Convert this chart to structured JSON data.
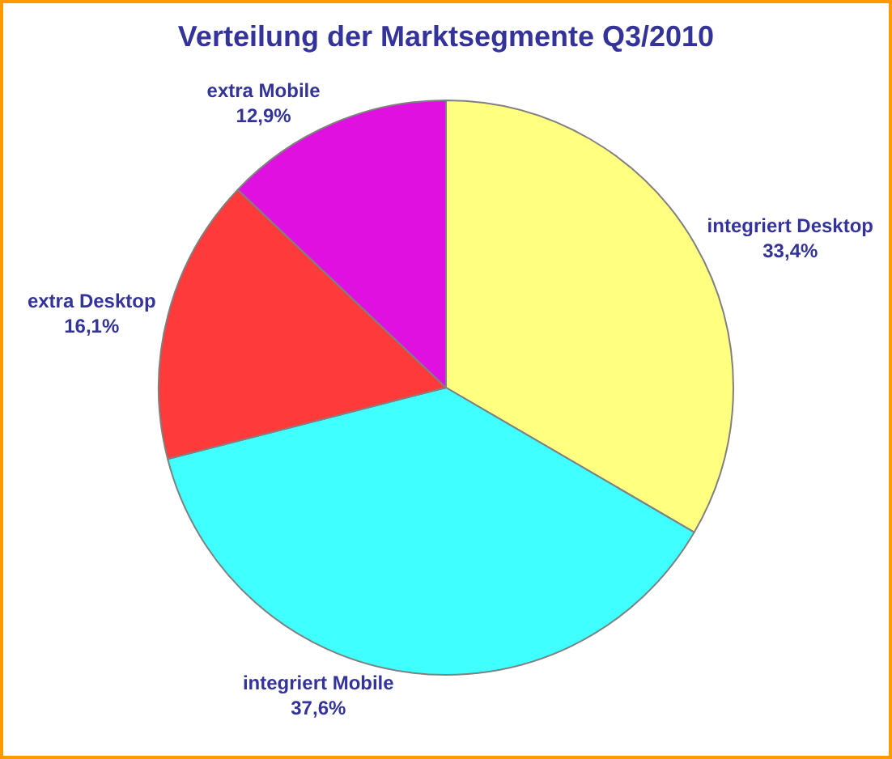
{
  "chart_data": {
    "type": "pie",
    "title": "Verteilung der Marktsegmente Q3/2010",
    "categories": [
      "integriert Desktop",
      "integriert Mobile",
      "extra Desktop",
      "extra Mobile"
    ],
    "values": [
      33.4,
      37.6,
      16.1,
      12.9
    ],
    "value_labels": [
      "33,4%",
      "37,6%",
      "16,1%",
      "12,9%"
    ],
    "colors": [
      "#ffff80",
      "#40ffff",
      "#ff3a3a",
      "#e010e0"
    ],
    "legend": false
  }
}
